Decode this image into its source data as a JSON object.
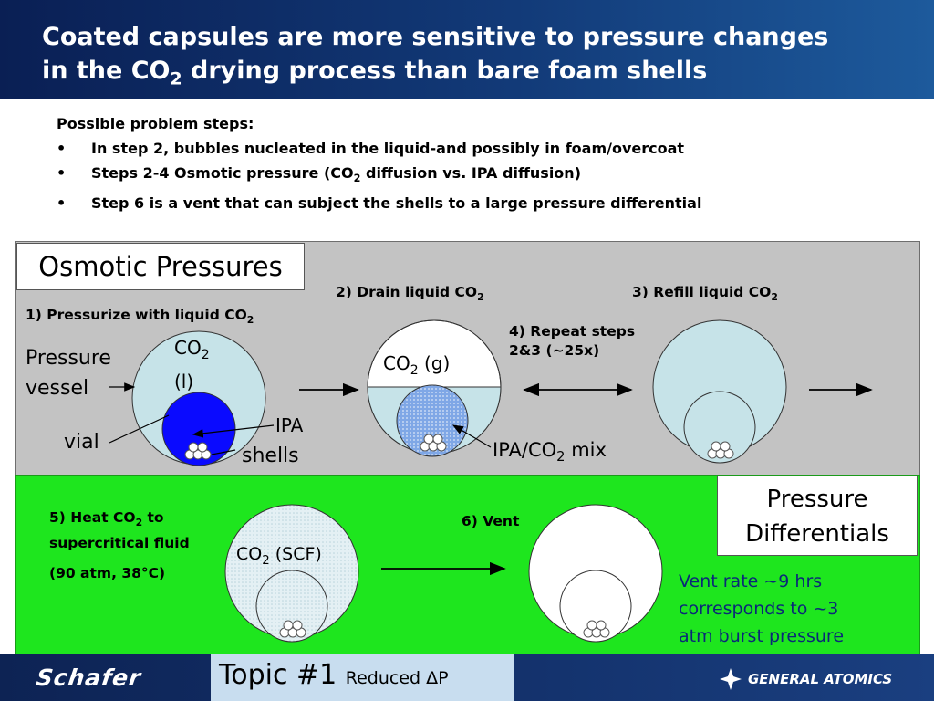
{
  "title": {
    "line1": "Coated capsules are more sensitive to pressure changes",
    "line2_pre": "in the CO",
    "line2_sub": "2",
    "line2_post": " drying process than bare foam shells"
  },
  "intro": {
    "heading": "Possible problem steps:",
    "bullet_symbol": "•",
    "b1": "In step 2, bubbles nucleated in the liquid-and possibly in foam/overcoat",
    "b2_pre": "Steps 2-4 Osmotic pressure (CO",
    "b2_sub": "2",
    "b2_post": " diffusion vs. IPA diffusion)",
    "b3": "Step 6 is a vent that can subject the shells to a large pressure differential"
  },
  "osmotic_box": "Osmotic Pressures",
  "pressure_diff_box": {
    "line1": "Pressure",
    "line2": "Differentials"
  },
  "step1": {
    "pre": "1) Pressurize with liquid CO",
    "sub": "2"
  },
  "step2": {
    "pre": "2) Drain liquid CO",
    "sub": "2"
  },
  "step3": {
    "pre": "3) Refill liquid CO",
    "sub": "2"
  },
  "step4": {
    "line1": "4) Repeat steps",
    "line2": "2&3 (~25x)"
  },
  "step5": {
    "line1_pre": "5) Heat CO",
    "line1_sub": "2",
    "line1_post": " to",
    "line2": "supercritical fluid",
    "line3": "(90 atm, 38°C)"
  },
  "step6": "6) Vent",
  "labels": {
    "pressure_vessel_1": "Pressure",
    "pressure_vessel_2": "vessel",
    "vial": "vial",
    "ipa": "IPA",
    "shells": "shells",
    "co2l_1": "CO",
    "co2l_sub": "2",
    "co2l_2": "(l)",
    "co2g_pre": "CO",
    "co2g_sub": "2",
    "co2g_post": " (g)",
    "ipa_mix_pre": "IPA/CO",
    "ipa_mix_sub": "2",
    "ipa_mix_post": " mix",
    "scf_pre": "CO",
    "scf_sub": "2",
    "scf_post": " (SCF)"
  },
  "vent_note": {
    "l1": "Vent rate ~9 hrs",
    "l2": "corresponds to ~3",
    "l3": "atm burst pressure"
  },
  "footer": {
    "left_logo": "Schafer",
    "topic_main": "Topic #1",
    "topic_small": "Reduced ΔP",
    "right_logo": "GENERAL ATOMICS"
  },
  "colors": {
    "header_blue": "#0a1f54",
    "panel_gray": "#c3c3c3",
    "panel_green": "#1ee61e",
    "liquid_co2": "#c6e3e8",
    "vial_blue": "#0a0aff",
    "mix_blue": "#7fa7e6",
    "note_blue": "#0a2878"
  }
}
